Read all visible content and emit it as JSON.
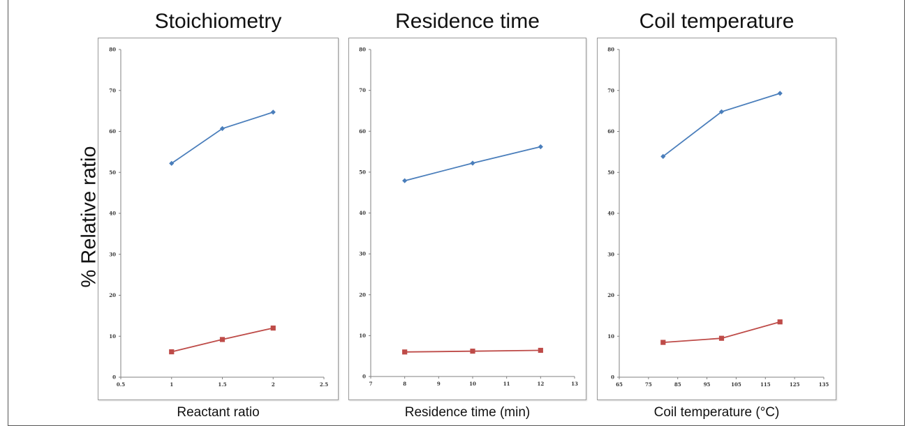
{
  "ylabel": "% Relative ratio",
  "colors": {
    "series1": "#4a7ebb",
    "series2": "#be4b48",
    "axis": "#808080"
  },
  "chart_data": [
    {
      "type": "line",
      "title": "Stoichiometry",
      "xlabel": "Reactant ratio",
      "ylabel": "% Relative ratio",
      "xlim": [
        0.5,
        2.5
      ],
      "ylim": [
        0,
        80
      ],
      "xticks": [
        0.5,
        1,
        1.5,
        2,
        2.5
      ],
      "xtick_labels": [
        "0.5",
        "1",
        "1.5",
        "2",
        "2.5"
      ],
      "yticks": [
        0,
        10,
        20,
        30,
        40,
        50,
        60,
        70,
        80
      ],
      "grid": false,
      "series": [
        {
          "marker": "diamond",
          "color": "#4a7ebb",
          "x": [
            1,
            1.5,
            2
          ],
          "y": [
            52.2,
            60.7,
            64.7
          ]
        },
        {
          "marker": "square",
          "color": "#be4b48",
          "x": [
            1,
            1.5,
            2
          ],
          "y": [
            6.2,
            9.2,
            12.0
          ]
        }
      ]
    },
    {
      "type": "line",
      "title": "Residence time",
      "xlabel": "Residence time (min)",
      "ylabel": "% Relative ratio",
      "xlim": [
        7,
        13
      ],
      "ylim": [
        0,
        80
      ],
      "xticks": [
        7,
        8,
        9,
        10,
        11,
        12,
        13
      ],
      "xtick_labels": [
        "7",
        "8",
        "9",
        "10",
        "11",
        "12",
        "13"
      ],
      "yticks": [
        0,
        10,
        20,
        30,
        40,
        50,
        60,
        70,
        80
      ],
      "grid": false,
      "series": [
        {
          "marker": "diamond",
          "color": "#4a7ebb",
          "x": [
            8,
            10,
            12
          ],
          "y": [
            47.9,
            52.2,
            56.2
          ]
        },
        {
          "marker": "square",
          "color": "#be4b48",
          "x": [
            8,
            10,
            12
          ],
          "y": [
            6.0,
            6.2,
            6.4
          ]
        }
      ]
    },
    {
      "type": "line",
      "title": "Coil temperature",
      "xlabel": "Coil temperature (°C)",
      "ylabel": "% Relative ratio",
      "xlim": [
        65,
        135
      ],
      "ylim": [
        0,
        80
      ],
      "xticks": [
        65,
        75,
        85,
        95,
        105,
        115,
        125,
        135
      ],
      "xtick_labels": [
        "65",
        "75",
        "85",
        "95",
        "105",
        "115",
        "125",
        "135"
      ],
      "yticks": [
        0,
        10,
        20,
        30,
        40,
        50,
        60,
        70,
        80
      ],
      "grid": false,
      "series": [
        {
          "marker": "diamond",
          "color": "#4a7ebb",
          "x": [
            80,
            100,
            120
          ],
          "y": [
            53.9,
            64.8,
            69.3
          ]
        },
        {
          "marker": "square",
          "color": "#be4b48",
          "x": [
            80,
            100,
            120
          ],
          "y": [
            8.5,
            9.5,
            13.5
          ]
        }
      ]
    }
  ]
}
